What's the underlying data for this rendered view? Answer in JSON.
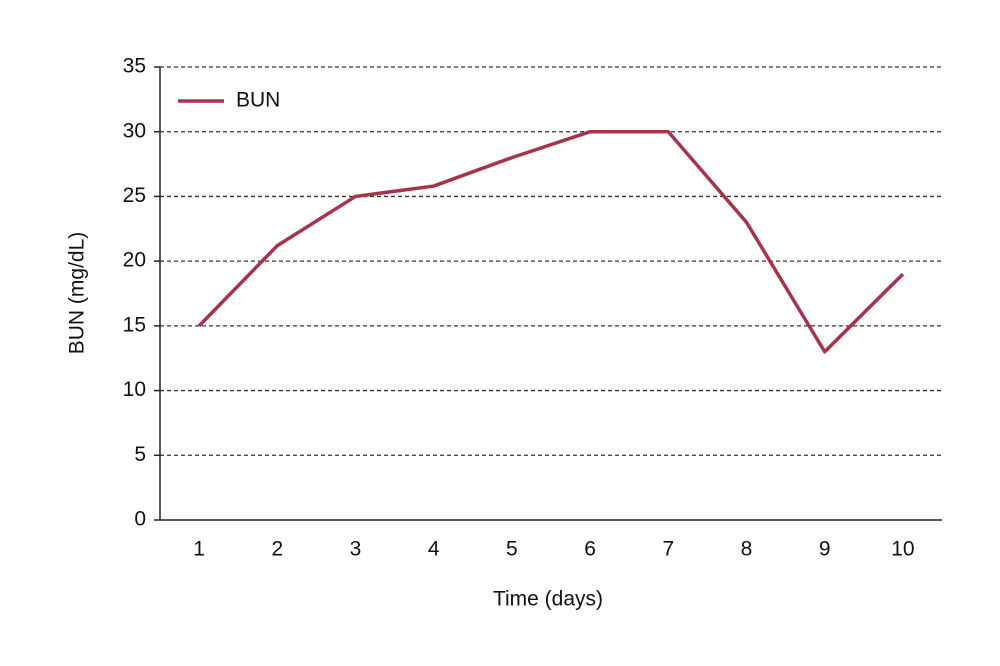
{
  "chart_data": {
    "type": "line",
    "x_label": "Time (days)",
    "y_label": "BUN (mg/dL)",
    "categories": [
      "1",
      "2",
      "3",
      "4",
      "5",
      "6",
      "7",
      "8",
      "9",
      "10"
    ],
    "series": [
      {
        "name": "BUN",
        "color": "#a5334a",
        "values": [
          15,
          21.2,
          25,
          25.8,
          28,
          30,
          30,
          23,
          13,
          19
        ]
      }
    ],
    "ylim": [
      0,
      35
    ],
    "yticks": [
      0,
      5,
      10,
      15,
      20,
      25,
      30,
      35
    ],
    "grid": true,
    "legend": "upper left"
  }
}
